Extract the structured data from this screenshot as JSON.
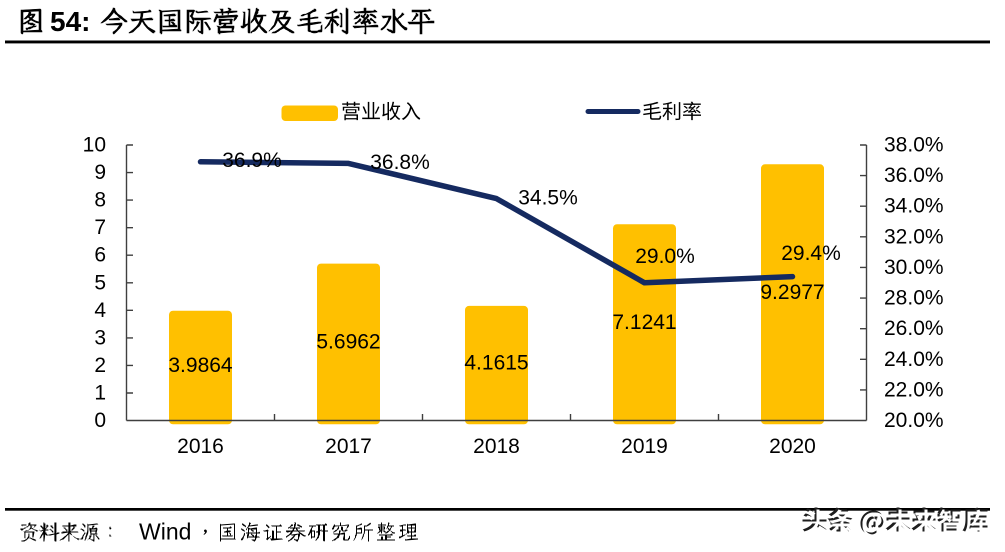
{
  "figure": {
    "label_prefix": "图",
    "number": "54:",
    "title": "今天国际营收及毛利率水平",
    "full_title": "图 54:  今天国际营收及毛利率水平"
  },
  "legend": {
    "bar_label": "营业收入",
    "line_label": "毛利率"
  },
  "chart_data": {
    "type": "bar+line",
    "categories": [
      "2016",
      "2017",
      "2018",
      "2019",
      "2020"
    ],
    "series": [
      {
        "name": "营业收入",
        "type": "bar",
        "axis": "left",
        "color": "#FFC000",
        "values": [
          3.9864,
          5.6962,
          4.1615,
          7.1241,
          9.2977
        ],
        "display_values": [
          "3.9864",
          "5.6962",
          "4.1615",
          "7.1241",
          "9.2977"
        ]
      },
      {
        "name": "毛利率",
        "type": "line",
        "axis": "right",
        "color": "#152A60",
        "values": [
          36.9,
          36.8,
          34.5,
          29.0,
          29.4
        ],
        "display_values": [
          "36.9%",
          "36.8%",
          "34.5%",
          "29.0%",
          "29.4%"
        ]
      }
    ],
    "left_axis": {
      "min": 0,
      "max": 10,
      "tick_step": 1,
      "labels": [
        "10",
        "9",
        "8",
        "7",
        "6",
        "5",
        "4",
        "3",
        "2",
        "1",
        "0"
      ]
    },
    "right_axis": {
      "min": 20,
      "max": 38,
      "tick_step": 2,
      "labels": [
        "38.0%",
        "36.0%",
        "34.0%",
        "32.0%",
        "30.0%",
        "28.0%",
        "26.0%",
        "24.0%",
        "22.0%",
        "20.0%"
      ]
    },
    "grid": false,
    "legend_position": "top"
  },
  "footer": {
    "source_prefix": "资料来源：",
    "source_name": "Wind",
    "comma": "，",
    "source_suffix": "国海证券研究所整理",
    "full_text": "资料来源：Wind，国海证券研究所整理"
  },
  "watermark": {
    "text": "头条 @未来智库"
  },
  "colors": {
    "bar": "#FFC000",
    "line": "#152A60",
    "axis": "#3F3F3F",
    "text": "#000000",
    "rule": "#000000",
    "background": "#FFFFFF"
  }
}
